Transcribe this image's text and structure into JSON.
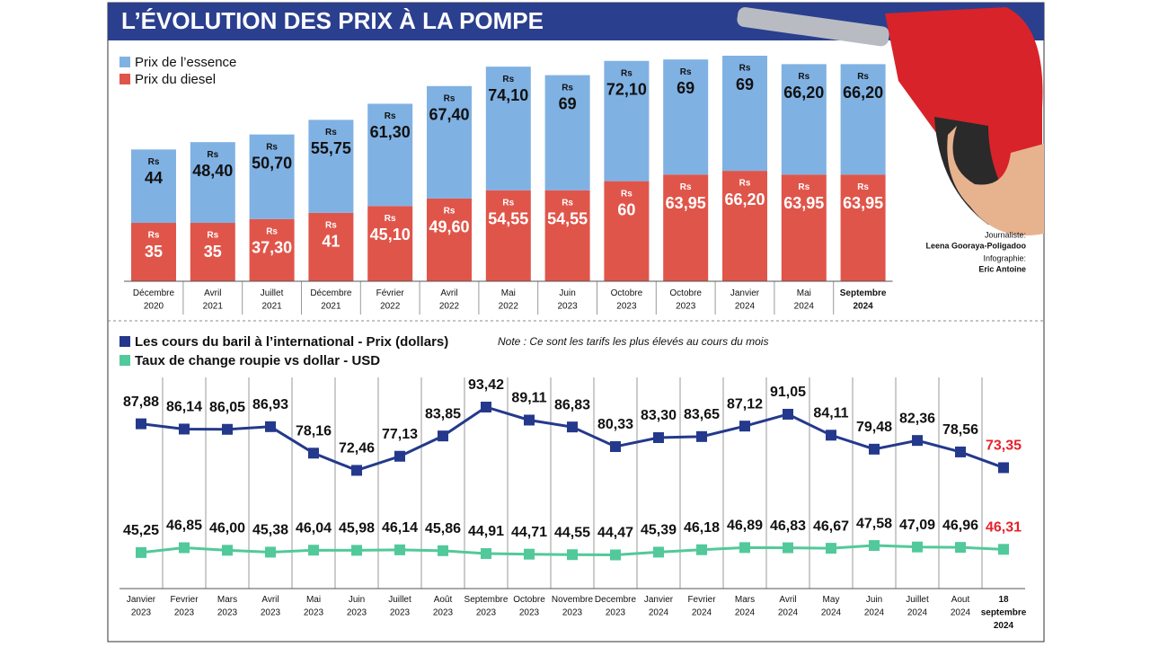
{
  "title": "L’ÉVOLUTION DES PRIX À LA POMPE",
  "credits": [
    "Journaliste:",
    "Leena Gooraya-Poligadoo",
    "Infographie:",
    "Eric Antoine"
  ],
  "chart_data": [
    {
      "type": "bar",
      "stacked": true,
      "value_prefix": "Rs",
      "bold_last_category": true,
      "categories": [
        "Décembre\n2020",
        "Avril\n2021",
        "Juillet\n2021",
        "Décembre\n2021",
        "Février\n2022",
        "Avril\n2022",
        "Mai\n2022",
        "Juin\n2023",
        "Octobre\n2023",
        "Octobre\n2023",
        "Janvier\n2024",
        "Mai\n2024",
        "Septembre\n2024"
      ],
      "series": [
        {
          "name": "Prix du diesel",
          "color": "#e0554a",
          "label_color": "#ffffff",
          "values": [
            35,
            35,
            37.3,
            41,
            45.1,
            49.6,
            54.55,
            54.55,
            60,
            63.95,
            66.2,
            63.95,
            63.95
          ],
          "value_labels": [
            "35",
            "35",
            "37,30",
            "41",
            "45,10",
            "49,60",
            "54,55",
            "54,55",
            "60",
            "63,95",
            "66,20",
            "63,95",
            "63,95"
          ]
        },
        {
          "name": "Prix de l’essence",
          "color": "#80b1e3",
          "label_color": "#111111",
          "values": [
            44,
            48.4,
            50.7,
            55.75,
            61.3,
            67.4,
            74.1,
            69,
            72.1,
            69,
            69,
            66.2,
            66.2
          ],
          "value_labels": [
            "44",
            "48,40",
            "50,70",
            "55,75",
            "61,30",
            "67,40",
            "74,10",
            "69",
            "72,10",
            "69",
            "69",
            "66,20",
            "66,20"
          ]
        }
      ]
    },
    {
      "type": "line",
      "note": "Note : Ce sont les tarifs les plus élevés au cours du mois",
      "last_label_color": "#e8202a",
      "bold_last_category": true,
      "categories": [
        "Janvier\n2023",
        "Fevrier\n2023",
        "Mars\n2023",
        "Avril\n2023",
        "Mai\n2023",
        "Juin\n2023",
        "Juillet\n2023",
        "Août\n2023",
        "Septembre\n2023",
        "Octobre\n2023",
        "Novembre\n2023",
        "Decembre\n2023",
        "Janvier\n2024",
        "Fevrier\n2024",
        "Mars\n2024",
        "Avril\n2024",
        "May\n2024",
        "Juin\n2024",
        "Juillet\n2024",
        "Aout\n2024",
        "18\nseptembre\n2024"
      ],
      "series": [
        {
          "name": "Les cours du baril à l’international  - Prix (dollars)",
          "color": "#24398c",
          "values": [
            87.88,
            86.14,
            86.05,
            86.93,
            78.16,
            72.46,
            77.13,
            83.85,
            93.42,
            89.11,
            86.83,
            80.33,
            83.3,
            83.65,
            87.12,
            91.05,
            84.11,
            79.48,
            82.36,
            78.56,
            73.35
          ],
          "value_labels": [
            "87,88",
            "86,14",
            "86,05",
            "86,93",
            "78,16",
            "72,46",
            "77,13",
            "83,85",
            "93,42",
            "89,11",
            "86,83",
            "80,33",
            "83,30",
            "83,65",
            "87,12",
            "91,05",
            "84,11",
            "79,48",
            "82,36",
            "78,56",
            "73,35"
          ]
        },
        {
          "name": "Taux de change roupie vs dollar  - USD",
          "color": "#52c99b",
          "values": [
            45.25,
            46.85,
            46.0,
            45.38,
            46.04,
            45.98,
            46.14,
            45.86,
            44.91,
            44.71,
            44.55,
            44.47,
            45.39,
            46.18,
            46.89,
            46.83,
            46.67,
            47.58,
            47.09,
            46.96,
            46.31
          ],
          "value_labels": [
            "45,25",
            "46,85",
            "46,00",
            "45,38",
            "46,04",
            "45,98",
            "46,14",
            "45,86",
            "44,91",
            "44,71",
            "44,55",
            "44,47",
            "45,39",
            "46,18",
            "46,89",
            "46,83",
            "46,67",
            "47,58",
            "47,09",
            "46,96",
            "46,31"
          ]
        }
      ]
    }
  ]
}
